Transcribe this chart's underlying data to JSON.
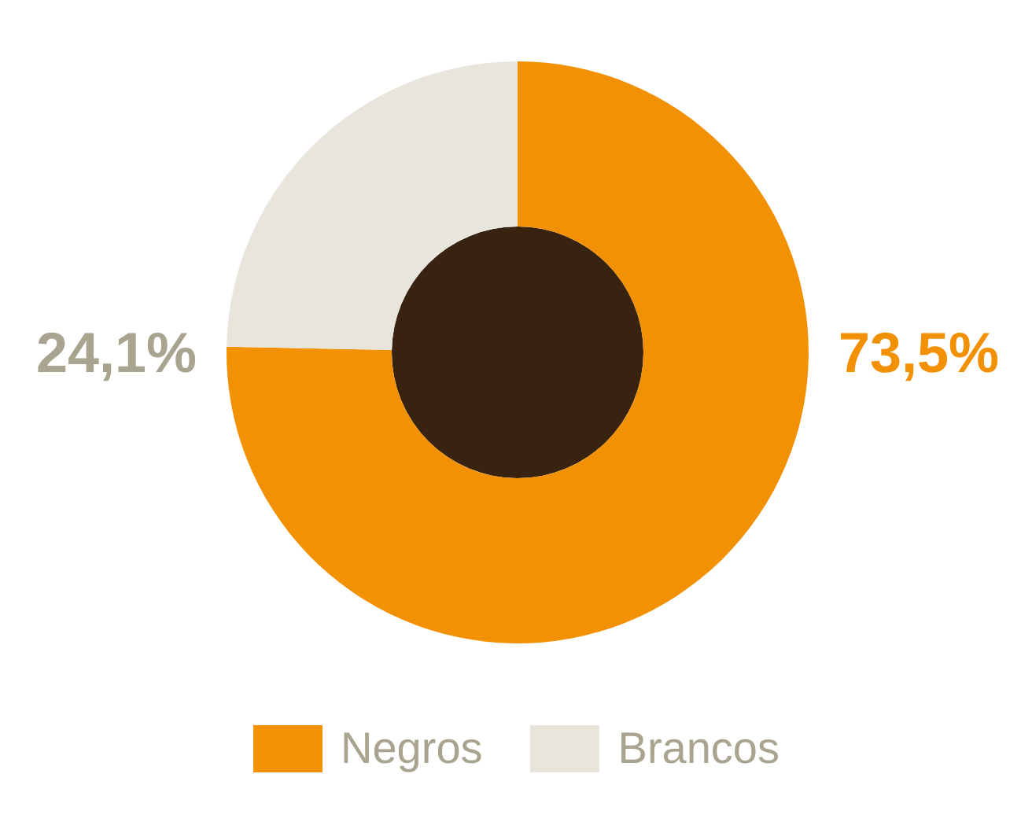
{
  "chart_data": {
    "type": "donut",
    "categories": [
      "Negros",
      "Brancos"
    ],
    "values": [
      73.5,
      24.1
    ],
    "colors": [
      "#f29104",
      "#e8e6dc"
    ],
    "value_labels": [
      "73,5%",
      "24,1%"
    ],
    "legend": "bottom"
  }
}
